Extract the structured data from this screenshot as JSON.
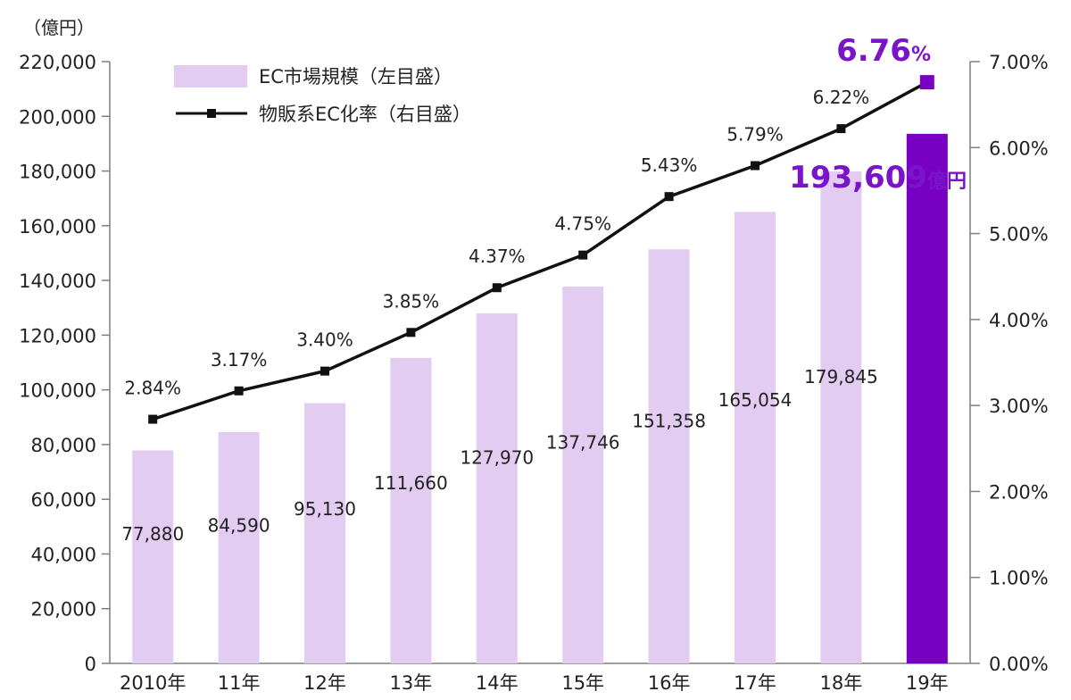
{
  "chart_data": {
    "type": "bar",
    "unit_label": "（億円）",
    "categories": [
      "2010年",
      "11年",
      "12年",
      "13年",
      "14年",
      "15年",
      "16年",
      "17年",
      "18年",
      "19年"
    ],
    "series": [
      {
        "name": "EC市場規模（左目盛）",
        "type": "bar",
        "axis": "left",
        "values": [
          77880,
          84590,
          95130,
          111660,
          127970,
          137746,
          151358,
          165054,
          179845,
          193609
        ],
        "labels": [
          "77,880",
          "84,590",
          "95,130",
          "111,660",
          "127,970",
          "137,746",
          "151,358",
          "165,054",
          "179,845",
          "193,609"
        ]
      },
      {
        "name": "物販系EC化率（右目盛）",
        "type": "line",
        "axis": "right",
        "values": [
          2.84,
          3.17,
          3.4,
          3.85,
          4.37,
          4.75,
          5.43,
          5.79,
          6.22,
          6.76
        ],
        "labels": [
          "2.84%",
          "3.17%",
          "3.40%",
          "3.85%",
          "4.37%",
          "4.75%",
          "5.43%",
          "5.79%",
          "6.22%",
          "6.76%"
        ]
      }
    ],
    "y_left": {
      "range": [
        0,
        220000
      ],
      "ticks": [
        "0",
        "20,000",
        "40,000",
        "60,000",
        "80,000",
        "100,000",
        "120,000",
        "140,000",
        "160,000",
        "180,000",
        "200,000",
        "220,000"
      ]
    },
    "y_right": {
      "range": [
        0,
        7
      ],
      "ticks": [
        "0.00%",
        "1.00%",
        "2.00%",
        "3.00%",
        "4.00%",
        "5.00%",
        "6.00%",
        "7.00%"
      ]
    },
    "highlight": {
      "bar_value": "193,609",
      "bar_unit": "億円",
      "rate_value": "6.76",
      "rate_unit": "%"
    },
    "legend_placement": "top-left",
    "grid": false
  },
  "colors": {
    "bar": "#e2ccf1",
    "bar_highlight": "#7700c2",
    "line": "#111111",
    "highlight_text": "#7a14c8",
    "axis": "#7f7f7f"
  }
}
